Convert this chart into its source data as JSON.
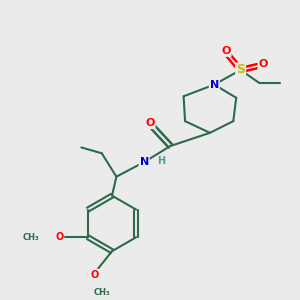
{
  "background_color": "#ebebeb",
  "bond_color": "#2d6b4a",
  "atom_colors": {
    "O": "#ff0000",
    "N": "#0000cc",
    "S": "#ccbb00",
    "C": "#2d6b4a",
    "H": "#5a9a8a"
  },
  "figsize": [
    3.0,
    3.0
  ],
  "dpi": 100
}
